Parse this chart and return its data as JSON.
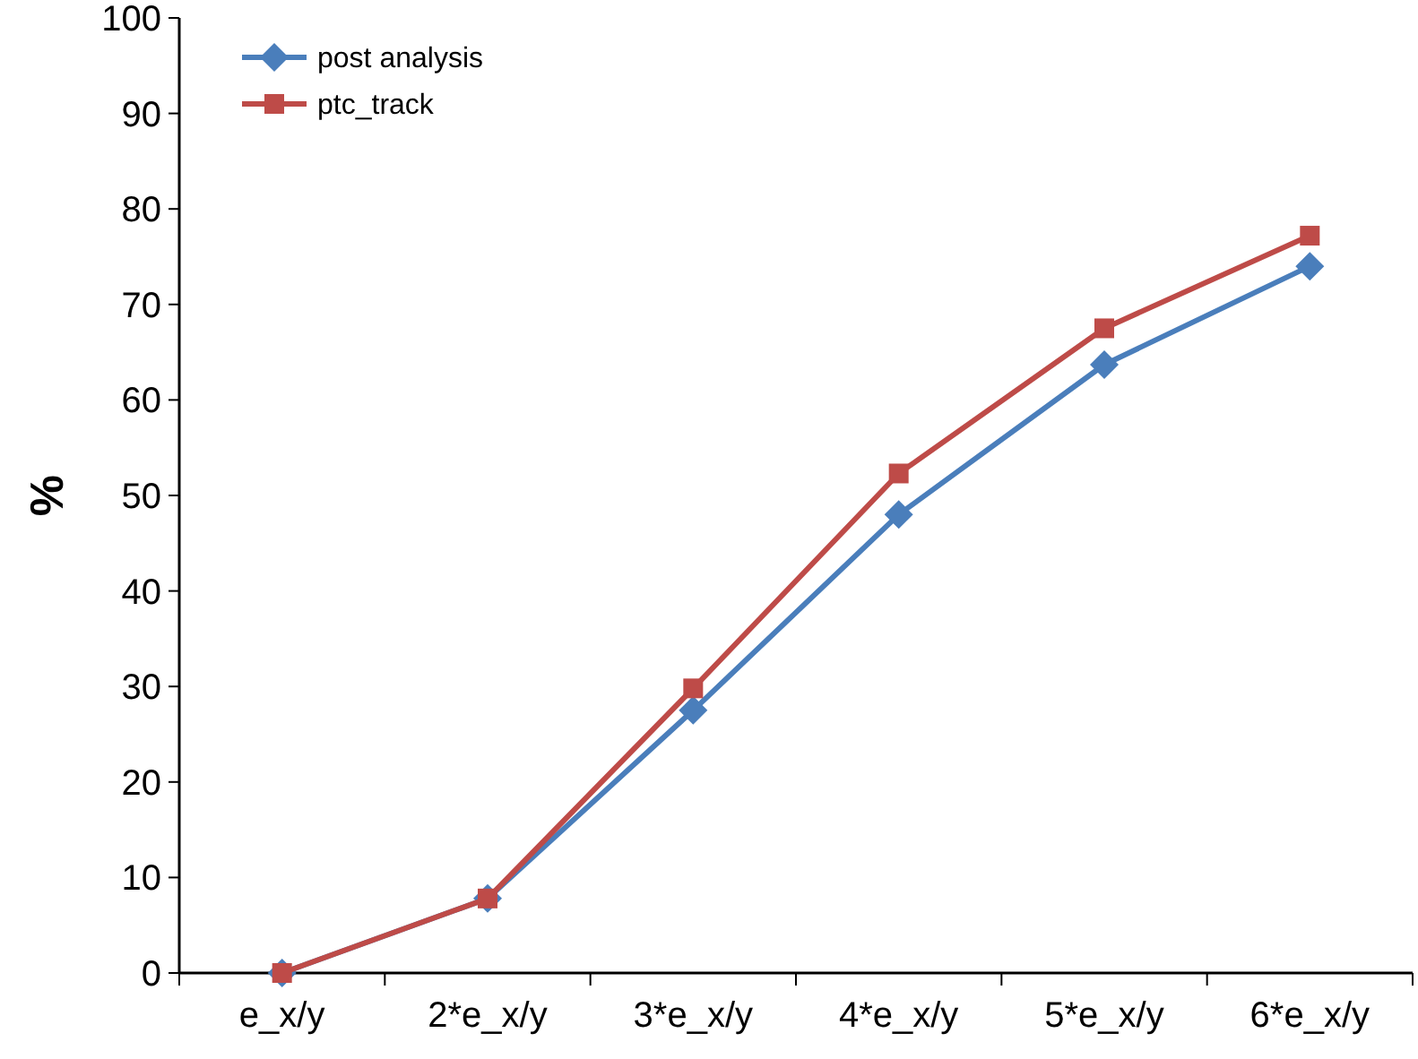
{
  "chart_data": {
    "type": "line",
    "ylabel": "%",
    "categories": [
      "e_x/y",
      "2*e_x/y",
      "3*e_x/y",
      "4*e_x/y",
      "5*e_x/y",
      "6*e_x/y"
    ],
    "series": [
      {
        "name": "post analysis",
        "color": "#4a7ebb",
        "marker": "diamond",
        "values": [
          0,
          7.8,
          27.5,
          48,
          63.7,
          74
        ]
      },
      {
        "name": "ptc_track",
        "color": "#be4b48",
        "marker": "square",
        "values": [
          0,
          7.8,
          29.8,
          52.3,
          67.5,
          77.2
        ]
      }
    ],
    "ylim": [
      0,
      100
    ],
    "yticks": [
      0,
      10,
      20,
      30,
      40,
      50,
      60,
      70,
      80,
      90,
      100
    ],
    "grid": false,
    "legend": "top left",
    "line_style": "solid"
  }
}
